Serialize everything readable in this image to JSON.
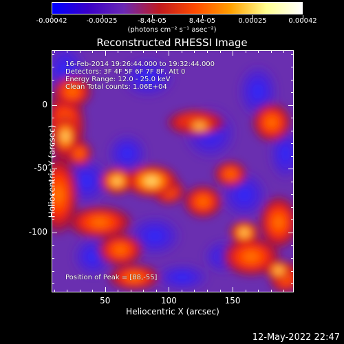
{
  "colorbar": {
    "tick_labels": [
      "-0.00042",
      "-0.00025",
      "-8.4e-05",
      "8.4e-05",
      "0.00025",
      "0.00042"
    ],
    "units": "(photons cm⁻² s⁻¹ asec⁻²)",
    "colors": [
      "#0000ff",
      "#3a00c8",
      "#6a28b4",
      "#c01a20",
      "#ff4a00",
      "#ffa000",
      "#ffff90",
      "#ffffff"
    ]
  },
  "title": "Reconstructed RHESSI Image",
  "info": {
    "time": "16-Feb-2014 19:26:44.000 to 19:32:44.000",
    "detectors": "Detectors: 3F 4F 5F 6F 7F 8F, Att 0",
    "energy": "Energy Range: 12.0 - 25.0 keV",
    "clean": "Clean     Total counts: 1.06E+04",
    "peak": "Position of Peak = [88,-55]"
  },
  "axes": {
    "xlabel": "Heliocentric X (arcsec)",
    "ylabel": "Heliocentric Y (arcsec)",
    "x_ticks": [
      "50",
      "100",
      "150"
    ],
    "y_ticks": [
      "0",
      "-50",
      "-100"
    ],
    "xlim": [
      8,
      198
    ],
    "ylim": [
      -147,
      43
    ]
  },
  "timestamp": "12-May-2022 22:47"
}
